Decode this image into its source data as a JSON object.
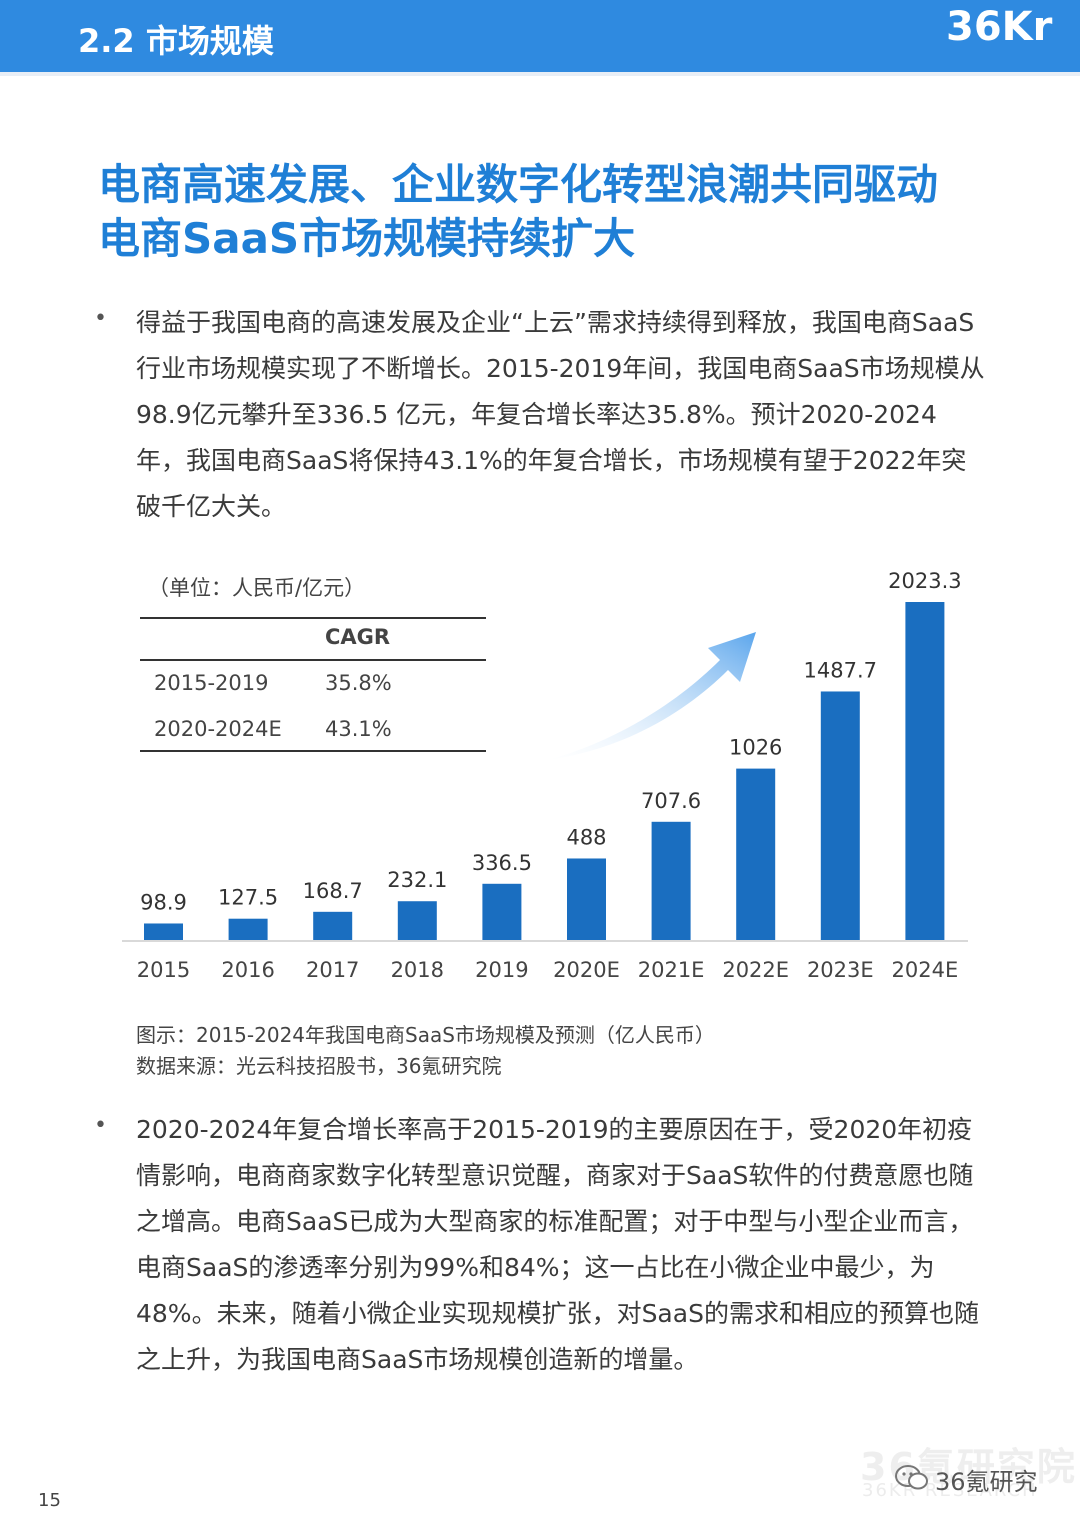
{
  "header": {
    "section_title": "2.2 市场规模",
    "logo_text": "36Kr",
    "color": "#2f8ae0"
  },
  "headline": {
    "line1": "电商高速发展、企业数字化转型浪潮共同驱动",
    "line2": "电商SaaS市场规模持续扩大"
  },
  "paragraphs": {
    "p1": "得益于我国电商的高速发展及企业“上云”需求持续得到释放，我国电商SaaS行业市场规模实现了不断增长。2015-2019年间，我国电商SaaS市场规模从98.9亿元攀升至336.5 亿元，年复合增长率达35.8%。预计2020-2024年，我国电商SaaS将保持43.1%的年复合增长，市场规模有望于2022年突破千亿大关。",
    "p2": "2020-2024年复合增长率高于2015-2019的主要原因在于，受2020年初疫情影响，电商商家数字化转型意识觉醒，商家对于SaaS软件的付费意愿也随之增高。电商SaaS已成为大型商家的标准配置；对于中型与小型企业而言，电商SaaS的渗透率分别为99%和84%；这一占比在小微企业中最少，为48%。未来，随着小微企业实现规模扩张，对SaaS的需求和相应的预算也随之上升，为我国电商SaaS市场规模创造新的增量。",
    "bullet": "•"
  },
  "unit_label": "（单位：人民币/亿元）",
  "cagr_table": {
    "header": "CAGR",
    "rows": [
      {
        "period": "2015-2019",
        "value": "35.8%"
      },
      {
        "period": "2020-2024E",
        "value": "43.1%"
      }
    ]
  },
  "chart_data": {
    "type": "bar",
    "categories": [
      "2015",
      "2016",
      "2017",
      "2018",
      "2019",
      "2020E",
      "2021E",
      "2022E",
      "2023E",
      "2024E"
    ],
    "values": [
      98.9,
      127.5,
      168.7,
      232.1,
      336.5,
      488,
      707.6,
      1026,
      1487.7,
      2023.3
    ],
    "value_labels": [
      "98.9",
      "127.5",
      "168.7",
      "232.1",
      "336.5",
      "488",
      "707.6",
      "1026",
      "1487.7",
      "2023.3"
    ],
    "ylim": [
      0,
      2023.3
    ],
    "bar_color": "#1a6ec0",
    "arrow_color": "#6aaeee",
    "grid": false,
    "legend": "none"
  },
  "caption": {
    "figure": "图示：2015-2024年我国电商SaaS市场规模及预测（亿人民币）",
    "source": "数据来源：光云科技招股书，36氪研究院"
  },
  "footer": {
    "page_number": "15",
    "watermark_cn": "36氪研究院",
    "watermark_en": "36KR RESEARCH",
    "wechat_label": "36氪研究"
  }
}
